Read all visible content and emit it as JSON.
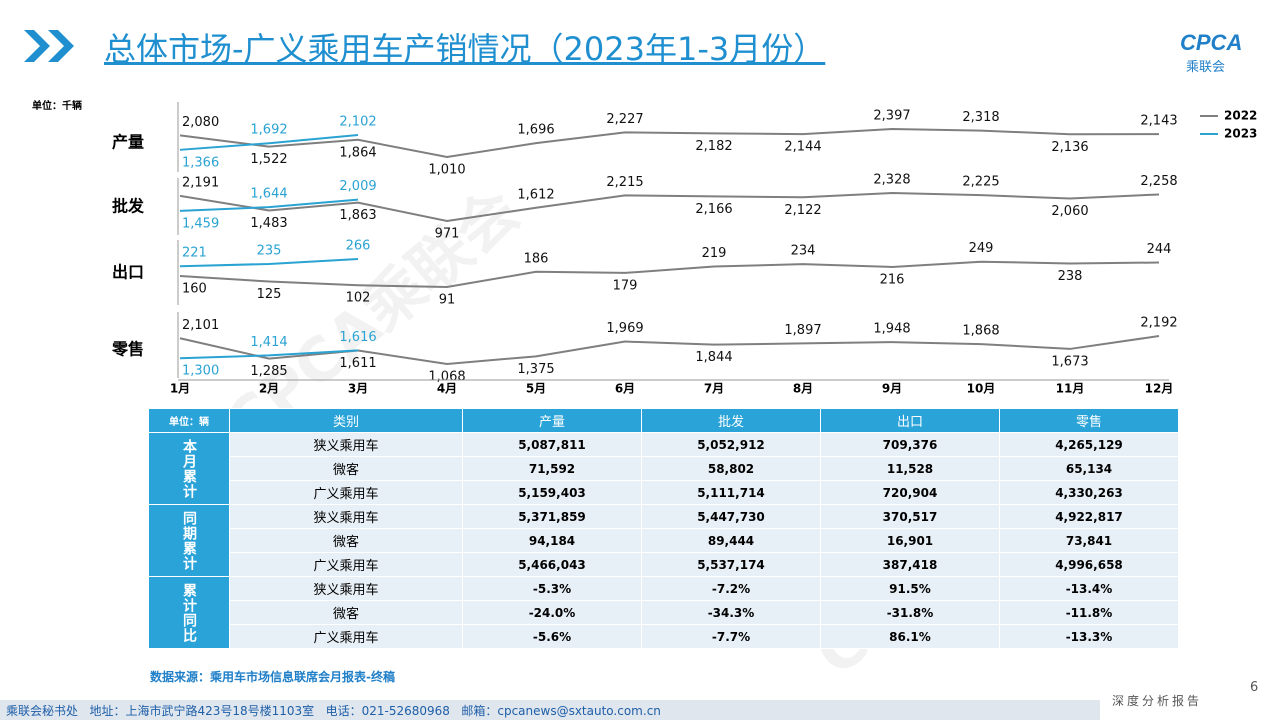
{
  "header": {
    "title": "总体市场-广义乘用车产销情况（2023年1-3月份）",
    "logo": "CPCA",
    "logo_sub": "乘联会"
  },
  "chart_data": {
    "type": "line",
    "unit": "单位：千辆",
    "categories": [
      "1月",
      "2月",
      "3月",
      "4月",
      "5月",
      "6月",
      "7月",
      "8月",
      "9月",
      "10月",
      "11月",
      "12月"
    ],
    "series": [
      {
        "name": "2022",
        "color": "#7f7f7f"
      },
      {
        "name": "2023",
        "color": "#2aa3d3"
      }
    ],
    "panels": [
      {
        "label": "产量",
        "values": [
          [
            2080,
            1522,
            1864,
            1010,
            1696,
            2227,
            2182,
            2144,
            2397,
            2318,
            2136,
            2143
          ],
          [
            1366,
            1692,
            2102,
            null,
            null,
            null,
            null,
            null,
            null,
            null,
            null,
            null
          ]
        ],
        "value_labels": [
          [
            "2,080",
            "1,522",
            "1,864",
            "1,010",
            "1,696",
            "2,227",
            "2,182",
            "2,144",
            "2,397",
            "2,318",
            "2,136",
            "2,143"
          ],
          [
            "1,366",
            "1,692",
            "2,102",
            null,
            null,
            null,
            null,
            null,
            null,
            null,
            null,
            null
          ]
        ]
      },
      {
        "label": "批发",
        "values": [
          [
            2191,
            1483,
            1863,
            971,
            1612,
            2215,
            2166,
            2122,
            2328,
            2225,
            2060,
            2258
          ],
          [
            1459,
            1644,
            2009,
            null,
            null,
            null,
            null,
            null,
            null,
            null,
            null,
            null
          ]
        ],
        "value_labels": [
          [
            "2,191",
            "1,483",
            "1,863",
            "971",
            "1,612",
            "2,215",
            "2,166",
            "2,122",
            "2,328",
            "2,225",
            "2,060",
            "2,258"
          ],
          [
            "1,459",
            "1,644",
            "2,009",
            null,
            null,
            null,
            null,
            null,
            null,
            null,
            null,
            null
          ]
        ]
      },
      {
        "label": "出口",
        "values": [
          [
            160,
            125,
            102,
            91,
            186,
            179,
            219,
            234,
            216,
            249,
            238,
            244
          ],
          [
            221,
            235,
            266,
            null,
            null,
            null,
            null,
            null,
            null,
            null,
            null,
            null
          ]
        ]
      },
      {
        "label": "零售",
        "values": [
          [
            2101,
            1285,
            1611,
            1068,
            1375,
            1969,
            1844,
            1897,
            1948,
            1868,
            1673,
            2192
          ],
          [
            1300,
            1414,
            1616,
            null,
            null,
            null,
            null,
            null,
            null,
            null,
            null,
            null
          ]
        ],
        "value_labels": [
          [
            "2,101",
            "1,285",
            "1,611",
            "1,068",
            "1,375",
            "1,969",
            "1,844",
            "1,897",
            "1,948",
            "1,868",
            "1,673",
            "2,192"
          ],
          [
            "1,300",
            "1,414",
            "1,616",
            null,
            null,
            null,
            null,
            null,
            null,
            null,
            null,
            null
          ]
        ]
      }
    ]
  },
  "table": {
    "unit": "单位：辆",
    "columns": [
      "类别",
      "产量",
      "批发",
      "出口",
      "零售"
    ],
    "groups": [
      {
        "label": "本月累计",
        "rows": [
          [
            "狭义乘用车",
            "5,087,811",
            "5,052,912",
            "709,376",
            "4,265,129"
          ],
          [
            "微客",
            "71,592",
            "58,802",
            "11,528",
            "65,134"
          ],
          [
            "广义乘用车",
            "5,159,403",
            "5,111,714",
            "720,904",
            "4,330,263"
          ]
        ]
      },
      {
        "label": "同期累计",
        "rows": [
          [
            "狭义乘用车",
            "5,371,859",
            "5,447,730",
            "370,517",
            "4,922,817"
          ],
          [
            "微客",
            "94,184",
            "89,444",
            "16,901",
            "73,841"
          ],
          [
            "广义乘用车",
            "5,466,043",
            "5,537,174",
            "387,418",
            "4,996,658"
          ]
        ]
      },
      {
        "label": "累计同比",
        "rows": [
          [
            "狭义乘用车",
            "-5.3%",
            "-7.2%",
            "91.5%",
            "-13.4%"
          ],
          [
            "微客",
            "-24.0%",
            "-34.3%",
            "-31.8%",
            "-11.8%"
          ],
          [
            "广义乘用车",
            "-5.6%",
            "-7.7%",
            "86.1%",
            "-13.3%"
          ]
        ]
      }
    ]
  },
  "source": "数据来源：乘用车市场信息联席会月报表-终稿",
  "watermark": "CPCA乘联会",
  "footer": {
    "page": "6",
    "report": "深度分析报告",
    "contact": "乘联会秘书处   地址：上海市武宁路423号18号楼1103室   电话：021-52680968   邮箱：cpcanews@sxtauto.com.cn"
  }
}
